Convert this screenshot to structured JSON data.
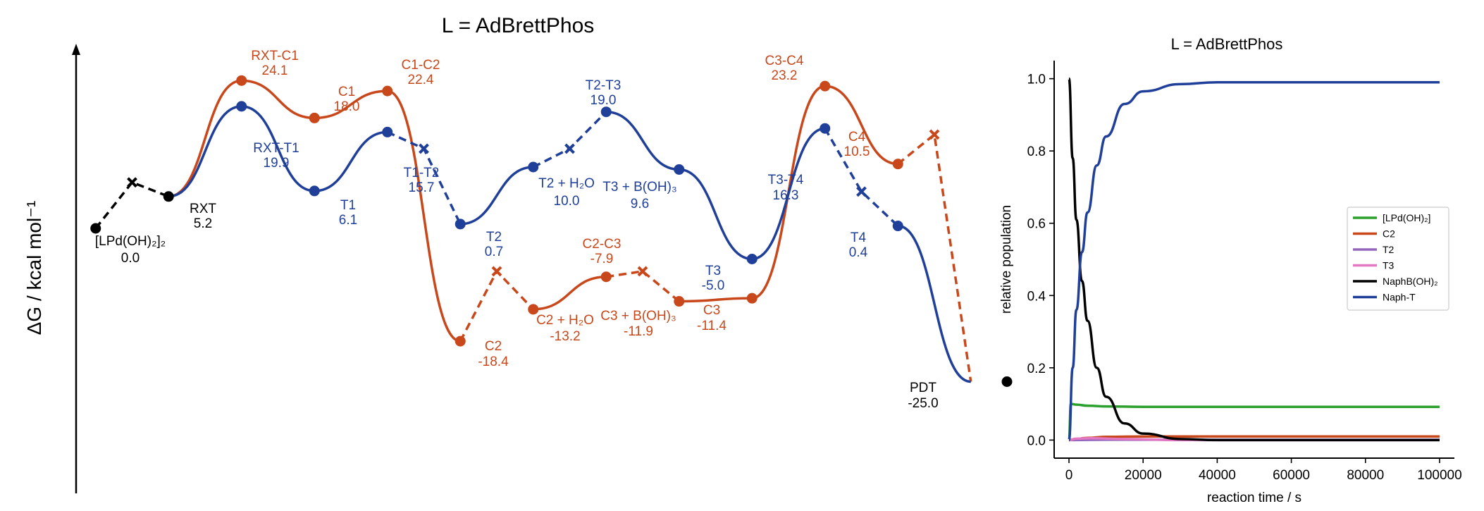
{
  "chart_data": [
    {
      "type": "line",
      "subtype": "energy-profile",
      "title": "L = AdBrettPhos",
      "ylabel": "ΔG / kcal mol⁻¹",
      "colors": {
        "common": "#000000",
        "C": "#c8471b",
        "T": "#1f3f99"
      },
      "labels": {
        "L": "[LPd(OH)₂]₂",
        "L_val": "0.0",
        "RXT": "RXT",
        "RXT_val": "5.2",
        "RXTC1": "RXT-C1",
        "RXTC1_val": "24.1",
        "C1": "C1",
        "C1_val": "18.0",
        "C1C2": "C1-C2",
        "C1C2_val": "22.4",
        "C2": "C2",
        "C2_val": "-18.4",
        "C2H2O": "C2 + H₂O",
        "C2H2O_val": "-13.2",
        "C2C3": "C2-C3",
        "C2C3_val": "-7.9",
        "C3B": "C3 + B(OH)₃",
        "C3B_val": "-11.9",
        "C3": "C3",
        "C3_val": "-11.4",
        "C3C4": "C3-C4",
        "C3C4_val": "23.2",
        "C4": "C4",
        "C4_val": "10.5",
        "RXTT1": "RXT-T1",
        "RXTT1_val": "19.9",
        "T1": "T1",
        "T1_val": "6.1",
        "T1T2": "T1-T2",
        "T1T2_val": "15.7",
        "T2": "T2",
        "T2_val": "0.7",
        "T2H2O": "T2 + H₂O",
        "T2H2O_val": "10.0",
        "T2T3": "T2-T3",
        "T2T3_val": "19.0",
        "T3B": "T3 + B(OH)₃",
        "T3B_val": "9.6",
        "T3": "T3",
        "T3_val": "-5.0",
        "T3T4": "T3-T4",
        "T3T4_val": "16.3",
        "T4": "T4",
        "T4_val": "0.4",
        "PDT": "PDT",
        "PDT_val": "-25.0"
      },
      "series": [
        {
          "name": "common",
          "color": "#000000",
          "x": [
            1.0,
            3.0
          ],
          "y": [
            0.0,
            5.2
          ],
          "end_x": 16.0,
          "end_y": -25.0
        },
        {
          "name": "C",
          "color": "#c8471b",
          "x": [
            3.0,
            5.0,
            7.0,
            9.0,
            11.0,
            13.0,
            15.0,
            17.0,
            19.0,
            21.0,
            23.0,
            25.0
          ],
          "y": [
            5.2,
            24.1,
            18.0,
            22.4,
            -18.4,
            -13.2,
            -7.9,
            -11.9,
            -11.4,
            23.2,
            10.5,
            -25.0
          ],
          "dashed_pairs": [
            [
              11.0,
              13.0
            ],
            [
              15.0,
              17.0
            ],
            [
              23.0,
              25.0
            ]
          ]
        },
        {
          "name": "T",
          "color": "#1f3f99",
          "x": [
            3.0,
            5.0,
            7.0,
            9.0,
            11.0,
            13.0,
            15.0,
            17.0,
            19.0,
            21.0,
            23.0,
            25.0
          ],
          "y": [
            5.2,
            19.9,
            6.1,
            15.7,
            0.7,
            10.0,
            19.0,
            9.6,
            -5.0,
            16.3,
            0.4,
            -25.0
          ],
          "dashed_pairs": [
            [
              9.0,
              11.0
            ],
            [
              13.0,
              15.0
            ],
            [
              21.0,
              23.0
            ]
          ]
        }
      ]
    },
    {
      "type": "line",
      "title": "L = AdBrettPhos",
      "xlabel": "reaction time / s",
      "ylabel": "relative population",
      "xlim": [
        -4000,
        104000
      ],
      "ylim": [
        -0.05,
        1.05
      ],
      "xticks": [
        "0",
        "20000",
        "40000",
        "60000",
        "80000",
        "100000"
      ],
      "yticks": [
        "0.0",
        "0.2",
        "0.4",
        "0.6",
        "0.8",
        "1.0"
      ],
      "legend_position": "right",
      "series": [
        {
          "name": "[LPd(OH)₂]",
          "color": "#2ca02c",
          "x": [
            0,
            500,
            2000,
            5000,
            10000,
            20000,
            100000
          ],
          "y": [
            0.0,
            0.1,
            0.098,
            0.095,
            0.093,
            0.092,
            0.092
          ]
        },
        {
          "name": "C2",
          "color": "#c8471b",
          "x": [
            0,
            5000,
            10000,
            20000,
            40000,
            100000
          ],
          "y": [
            0.0,
            0.006,
            0.009,
            0.01,
            0.01,
            0.01
          ]
        },
        {
          "name": "T2",
          "color": "#9467bd",
          "x": [
            0,
            10000,
            100000
          ],
          "y": [
            0.0,
            0.001,
            0.001
          ]
        },
        {
          "name": "T3",
          "color": "#e377c2",
          "x": [
            0,
            2000,
            6000,
            15000,
            30000,
            100000
          ],
          "y": [
            0.0,
            0.004,
            0.005,
            0.003,
            0.0,
            0.0
          ]
        },
        {
          "name": "NaphB(OH)₂",
          "color": "#000000",
          "x": [
            0,
            1000,
            2000,
            3500,
            5000,
            7500,
            10000,
            15000,
            20000,
            30000,
            40000,
            100000
          ],
          "y": [
            1.0,
            0.78,
            0.61,
            0.44,
            0.33,
            0.2,
            0.12,
            0.046,
            0.018,
            0.003,
            0.0,
            0.0
          ]
        },
        {
          "name": "Naph-T",
          "color": "#1f3f99",
          "x": [
            0,
            1000,
            2000,
            3500,
            5000,
            7500,
            10000,
            15000,
            20000,
            30000,
            40000,
            100000
          ],
          "y": [
            0.0,
            0.2,
            0.36,
            0.52,
            0.63,
            0.76,
            0.84,
            0.93,
            0.965,
            0.985,
            0.99,
            0.99
          ]
        }
      ]
    }
  ]
}
